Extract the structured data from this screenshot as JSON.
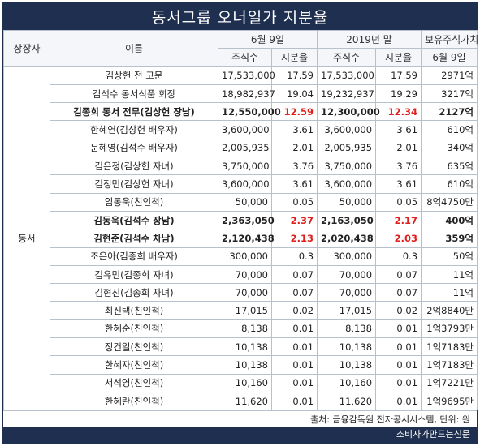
{
  "title": "동서그룹 오너일가 지분율",
  "headers": {
    "company": "상장사",
    "name": "이름",
    "june9": "6월 9일",
    "end2019": "2019년 말",
    "holding_value": "보유주식가치",
    "shares": "주식수",
    "ratio": "지분율",
    "value_date": "6월 9일"
  },
  "group_label": "동서",
  "rows": [
    {
      "name": "김상헌 전 고문",
      "s1": "17,533,000",
      "r1": "17.59",
      "s2": "17,533,000",
      "r2": "17.59",
      "val": "2971억",
      "bold": false,
      "red1": false,
      "red2": false
    },
    {
      "name": "김석수 동서식품 회장",
      "s1": "18,982,937",
      "r1": "19.04",
      "s2": "19,232,937",
      "r2": "19.29",
      "val": "3217억",
      "bold": false,
      "red1": false,
      "red2": false
    },
    {
      "name": "김종희 동서 전무(김상헌 장남)",
      "s1": "12,550,000",
      "r1": "12.59",
      "s2": "12,300,000",
      "r2": "12.34",
      "val": "2127억",
      "bold": true,
      "red1": true,
      "red2": true
    },
    {
      "name": "한혜연(김상헌 배우자)",
      "s1": "3,600,000",
      "r1": "3.61",
      "s2": "3,600,000",
      "r2": "3.61",
      "val": "610억",
      "bold": false,
      "red1": false,
      "red2": false
    },
    {
      "name": "문혜영(김석수 배우자)",
      "s1": "2,005,935",
      "r1": "2.01",
      "s2": "2,005,935",
      "r2": "2.01",
      "val": "340억",
      "bold": false,
      "red1": false,
      "red2": false
    },
    {
      "name": "김은정(김상헌 자녀)",
      "s1": "3,750,000",
      "r1": "3.76",
      "s2": "3,750,000",
      "r2": "3.76",
      "val": "635억",
      "bold": false,
      "red1": false,
      "red2": false
    },
    {
      "name": "김정민(김상헌 자녀)",
      "s1": "3,600,000",
      "r1": "3.61",
      "s2": "3,600,000",
      "r2": "3.61",
      "val": "610억",
      "bold": false,
      "red1": false,
      "red2": false
    },
    {
      "name": "임동욱(친인척)",
      "s1": "50,000",
      "r1": "0.05",
      "s2": "50,000",
      "r2": "0.05",
      "val": "8억4750만",
      "bold": false,
      "red1": false,
      "red2": false
    },
    {
      "name": "김동욱(김석수 장남)",
      "s1": "2,363,050",
      "r1": "2.37",
      "s2": "2,163,050",
      "r2": "2.17",
      "val": "400억",
      "bold": true,
      "red1": true,
      "red2": true
    },
    {
      "name": "김현준(김석수 차남)",
      "s1": "2,120,438",
      "r1": "2.13",
      "s2": "2,020,438",
      "r2": "2.03",
      "val": "359억",
      "bold": true,
      "red1": true,
      "red2": true
    },
    {
      "name": "조은아(김종희 배우자)",
      "s1": "300,000",
      "r1": "0.3",
      "s2": "300,000",
      "r2": "0.3",
      "val": "50억",
      "bold": false,
      "red1": false,
      "red2": false
    },
    {
      "name": "김유민(김종희 자녀)",
      "s1": "70,000",
      "r1": "0.07",
      "s2": "70,000",
      "r2": "0.07",
      "val": "11억",
      "bold": false,
      "red1": false,
      "red2": false
    },
    {
      "name": "김현진(김종희 자녀)",
      "s1": "70,000",
      "r1": "0.07",
      "s2": "70,000",
      "r2": "0.07",
      "val": "11억",
      "bold": false,
      "red1": false,
      "red2": false
    },
    {
      "name": "최진택(친인척)",
      "s1": "17,015",
      "r1": "0.02",
      "s2": "17,015",
      "r2": "0.02",
      "val": "2억8840만",
      "bold": false,
      "red1": false,
      "red2": false
    },
    {
      "name": "한혜순(친인척)",
      "s1": "8,138",
      "r1": "0.01",
      "s2": "8,138",
      "r2": "0.01",
      "val": "1억3793만",
      "bold": false,
      "red1": false,
      "red2": false
    },
    {
      "name": "정건일(친인척)",
      "s1": "10,138",
      "r1": "0.01",
      "s2": "10,138",
      "r2": "0.01",
      "val": "1억7183만",
      "bold": false,
      "red1": false,
      "red2": false
    },
    {
      "name": "한혜자(친인척)",
      "s1": "10,138",
      "r1": "0.01",
      "s2": "10,138",
      "r2": "0.01",
      "val": "1억7183만",
      "bold": false,
      "red1": false,
      "red2": false
    },
    {
      "name": "서석영(친인척)",
      "s1": "10,160",
      "r1": "0.01",
      "s2": "10,160",
      "r2": "0.01",
      "val": "1억7221만",
      "bold": false,
      "red1": false,
      "red2": false
    },
    {
      "name": "한혜란(친인척)",
      "s1": "11,620",
      "r1": "0.01",
      "s2": "11,620",
      "r2": "0.01",
      "val": "1억9695만",
      "bold": false,
      "red1": false,
      "red2": false
    }
  ],
  "source": "출처: 금융감독원 전자공시시스템, 단위: 원",
  "brand": "소비자가만드는신문",
  "colors": {
    "header_bg": "#1f2f4f",
    "highlight": "#e0201c"
  }
}
